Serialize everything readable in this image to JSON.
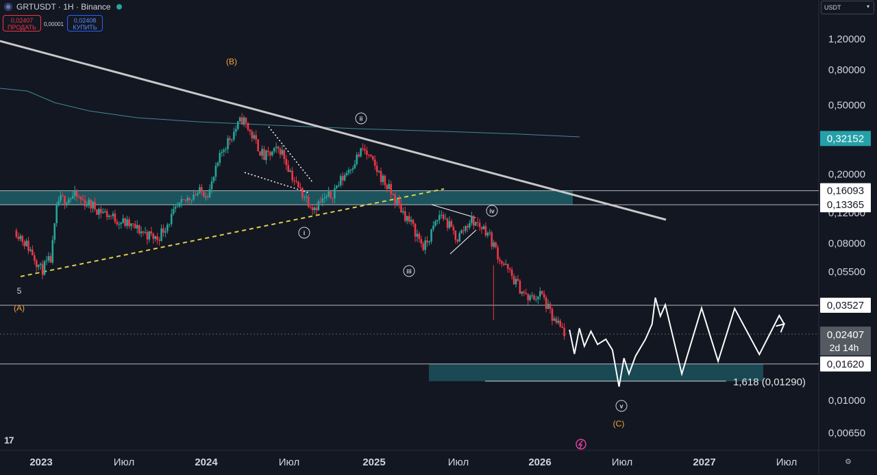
{
  "header": {
    "symbol": "GRTUSDT · 1H · Binance",
    "sell_price": "0,02407",
    "sell_label": "ПРОДАТЬ",
    "spread": "0,00001",
    "buy_price": "0,02408",
    "buy_label": "КУПИТЬ",
    "currency": "USDT"
  },
  "colors": {
    "background": "#131722",
    "up_candle": "#26a69a",
    "down_candle": "#f23645",
    "zone": "#1e5a64",
    "wave_label": "#f7a63b",
    "trendline": "#c8c8c8",
    "support_line": "#e0d14a"
  },
  "chart_data": {
    "type": "candlestick",
    "symbol": "GRTUSDT",
    "scale": "log",
    "y_ticks": [
      "1,20000",
      "0,80000",
      "0,50000",
      "0,20000",
      "0,12000",
      "0,08000",
      "0,05500",
      "0,01000",
      "0,00650"
    ],
    "x_ticks": [
      "2023",
      "Июл",
      "2024",
      "Июл",
      "2025",
      "Июл",
      "2026",
      "Июл",
      "2027",
      "Июл"
    ],
    "current_price": {
      "label": "0,02407",
      "countdown": "2d 14h"
    },
    "moving_average_last": {
      "label": "0,32152",
      "value": 0.32152
    },
    "price_levels": [
      {
        "label": "0,16093",
        "value": 0.16093
      },
      {
        "label": "0,13365",
        "value": 0.13365
      },
      {
        "label": "0,03527",
        "value": 0.03527
      },
      {
        "label": "0,01620",
        "value": 0.0162
      }
    ],
    "fib_target": {
      "label": "1,618 (0,01290)",
      "value": 0.0129
    },
    "wave_labels": [
      "(B)",
      "(A)",
      "5",
      "(C)"
    ],
    "subwave_labels": [
      "i",
      "ii",
      "iii",
      "iv",
      "v"
    ],
    "price_path": [
      {
        "t": 2022.85,
        "p": 0.095
      },
      {
        "t": 2022.95,
        "p": 0.07
      },
      {
        "t": 2023.0,
        "p": 0.056
      },
      {
        "t": 2023.06,
        "p": 0.065
      },
      {
        "t": 2023.1,
        "p": 0.14
      },
      {
        "t": 2023.2,
        "p": 0.15
      },
      {
        "t": 2023.32,
        "p": 0.13
      },
      {
        "t": 2023.42,
        "p": 0.115
      },
      {
        "t": 2023.55,
        "p": 0.1
      },
      {
        "t": 2023.7,
        "p": 0.085
      },
      {
        "t": 2023.82,
        "p": 0.125
      },
      {
        "t": 2023.92,
        "p": 0.155
      },
      {
        "t": 2024.02,
        "p": 0.16
      },
      {
        "t": 2024.1,
        "p": 0.28
      },
      {
        "t": 2024.22,
        "p": 0.42
      },
      {
        "t": 2024.35,
        "p": 0.25
      },
      {
        "t": 2024.45,
        "p": 0.28
      },
      {
        "t": 2024.55,
        "p": 0.17
      },
      {
        "t": 2024.65,
        "p": 0.13
      },
      {
        "t": 2024.75,
        "p": 0.15
      },
      {
        "t": 2024.87,
        "p": 0.22
      },
      {
        "t": 2024.95,
        "p": 0.28
      },
      {
        "t": 2025.05,
        "p": 0.2
      },
      {
        "t": 2025.15,
        "p": 0.14
      },
      {
        "t": 2025.25,
        "p": 0.1
      },
      {
        "t": 2025.32,
        "p": 0.075
      },
      {
        "t": 2025.42,
        "p": 0.12
      },
      {
        "t": 2025.52,
        "p": 0.085
      },
      {
        "t": 2025.6,
        "p": 0.11
      },
      {
        "t": 2025.7,
        "p": 0.095
      },
      {
        "t": 2025.78,
        "p": 0.065
      },
      {
        "t": 2025.86,
        "p": 0.05
      },
      {
        "t": 2025.95,
        "p": 0.038
      },
      {
        "t": 2026.03,
        "p": 0.041
      },
      {
        "t": 2026.1,
        "p": 0.029
      },
      {
        "t": 2026.18,
        "p": 0.024
      }
    ],
    "projection_path": [
      {
        "t": 2026.2,
        "p": 0.0255
      },
      {
        "t": 2026.23,
        "p": 0.0185
      },
      {
        "t": 2026.26,
        "p": 0.026
      },
      {
        "t": 2026.29,
        "p": 0.0205
      },
      {
        "t": 2026.33,
        "p": 0.025
      },
      {
        "t": 2026.37,
        "p": 0.021
      },
      {
        "t": 2026.42,
        "p": 0.0225
      },
      {
        "t": 2026.46,
        "p": 0.0195
      },
      {
        "t": 2026.5,
        "p": 0.012
      },
      {
        "t": 2026.53,
        "p": 0.0175
      },
      {
        "t": 2026.56,
        "p": 0.0142
      },
      {
        "t": 2026.6,
        "p": 0.018
      },
      {
        "t": 2026.66,
        "p": 0.0225
      },
      {
        "t": 2026.7,
        "p": 0.0275
      },
      {
        "t": 2026.72,
        "p": 0.039
      },
      {
        "t": 2026.75,
        "p": 0.0305
      },
      {
        "t": 2026.78,
        "p": 0.0355
      },
      {
        "t": 2026.88,
        "p": 0.0142
      },
      {
        "t": 2027.0,
        "p": 0.034
      },
      {
        "t": 2027.1,
        "p": 0.0168
      },
      {
        "t": 2027.2,
        "p": 0.0338
      },
      {
        "t": 2027.35,
        "p": 0.0184
      },
      {
        "t": 2027.47,
        "p": 0.0308
      },
      {
        "t": 2027.5,
        "p": 0.0275
      }
    ]
  }
}
